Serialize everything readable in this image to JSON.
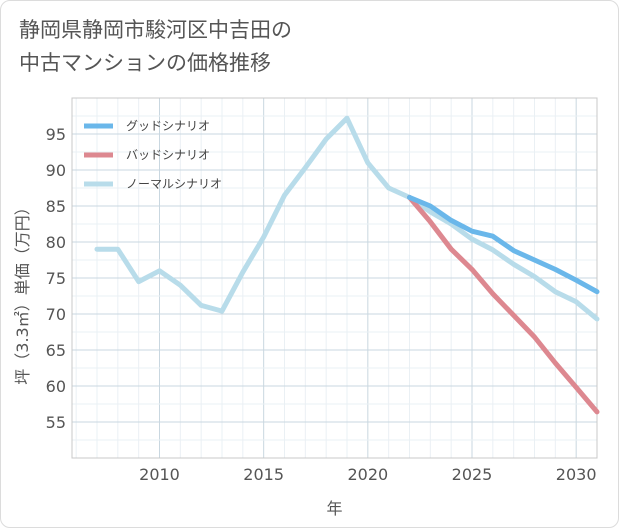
{
  "title_lines": [
    "静岡県静岡市駿河区中吉田の",
    "中古マンションの価格推移"
  ],
  "chart_data": {
    "type": "line",
    "title": "静岡県静岡市駿河区中吉田の中古マンションの価格推移",
    "xlabel": "年",
    "ylabel": "坪（3.3㎡）単価（万円）",
    "xlim": [
      2005.8,
      2031
    ],
    "ylim": [
      50,
      100
    ],
    "xticks": [
      2010,
      2015,
      2020,
      2025,
      2030
    ],
    "yticks": [
      55,
      60,
      65,
      70,
      75,
      80,
      85,
      90,
      95
    ],
    "grid": true,
    "legend_position": "top-left",
    "series": [
      {
        "name": "グッドシナリオ",
        "color": "#6ab7ea",
        "x": [
          2022,
          2023,
          2024,
          2025,
          2026,
          2027,
          2028,
          2029,
          2030,
          2031
        ],
        "y": [
          86.2,
          85.0,
          83.0,
          81.5,
          80.8,
          78.8,
          77.5,
          76.2,
          74.7,
          73.1
        ]
      },
      {
        "name": "バッドシナリオ",
        "color": "#dd8890",
        "x": [
          2022,
          2023,
          2024,
          2025,
          2026,
          2027,
          2028,
          2029,
          2030,
          2031
        ],
        "y": [
          86.2,
          82.8,
          79.0,
          76.2,
          72.8,
          69.8,
          66.8,
          63.2,
          59.8,
          56.4
        ]
      },
      {
        "name": "ノーマルシナリオ",
        "color": "#b8dcea",
        "x": [
          2007,
          2008,
          2009,
          2010,
          2011,
          2012,
          2013,
          2014,
          2015,
          2016,
          2017,
          2018,
          2019,
          2020,
          2021,
          2022,
          2023,
          2024,
          2025,
          2026,
          2027,
          2028,
          2029,
          2030,
          2031
        ],
        "y": [
          79.0,
          79.0,
          74.5,
          76.0,
          74.0,
          71.2,
          70.4,
          75.8,
          80.7,
          86.5,
          90.3,
          94.3,
          97.2,
          91.0,
          87.5,
          86.2,
          84.2,
          82.5,
          80.4,
          78.9,
          76.9,
          75.2,
          73.1,
          71.7,
          69.3
        ]
      }
    ]
  }
}
